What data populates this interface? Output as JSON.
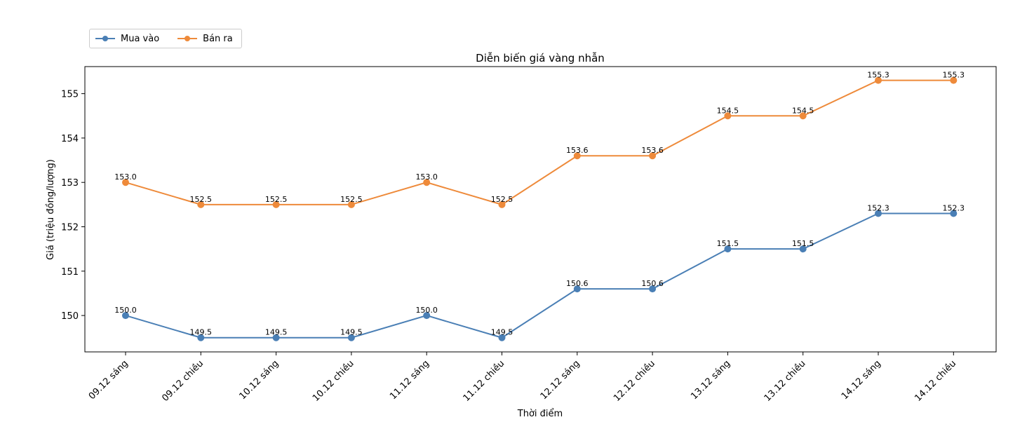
{
  "chart_data": {
    "type": "line",
    "title": "Diễn biến giá vàng nhẫn",
    "xlabel": "Thời điểm",
    "ylabel": "Giá (triệu đồng/lượng)",
    "categories": [
      "09.12 sáng",
      "09.12 chiều",
      "10.12 sáng",
      "10.12 chiều",
      "11.12 sáng",
      "11.12 chiều",
      "12.12 sáng",
      "12.12 chiều",
      "13.12 sáng",
      "13.12 chiều",
      "14.12 sáng",
      "14.12 chiều"
    ],
    "yticks": [
      150,
      151,
      152,
      153,
      154,
      155
    ],
    "ylim": [
      149.18,
      155.61
    ],
    "grid": false,
    "legend_position": "top-left, outside plot",
    "series": [
      {
        "name": "Mua vào",
        "color": "#4a7fb5",
        "values": [
          150.0,
          149.5,
          149.5,
          149.5,
          150.0,
          149.5,
          150.6,
          150.6,
          151.5,
          151.5,
          152.3,
          152.3
        ]
      },
      {
        "name": "Bán ra",
        "color": "#ee8a3a",
        "values": [
          153.0,
          152.5,
          152.5,
          152.5,
          153.0,
          152.5,
          153.6,
          153.6,
          154.5,
          154.5,
          155.3,
          155.3
        ]
      }
    ]
  }
}
